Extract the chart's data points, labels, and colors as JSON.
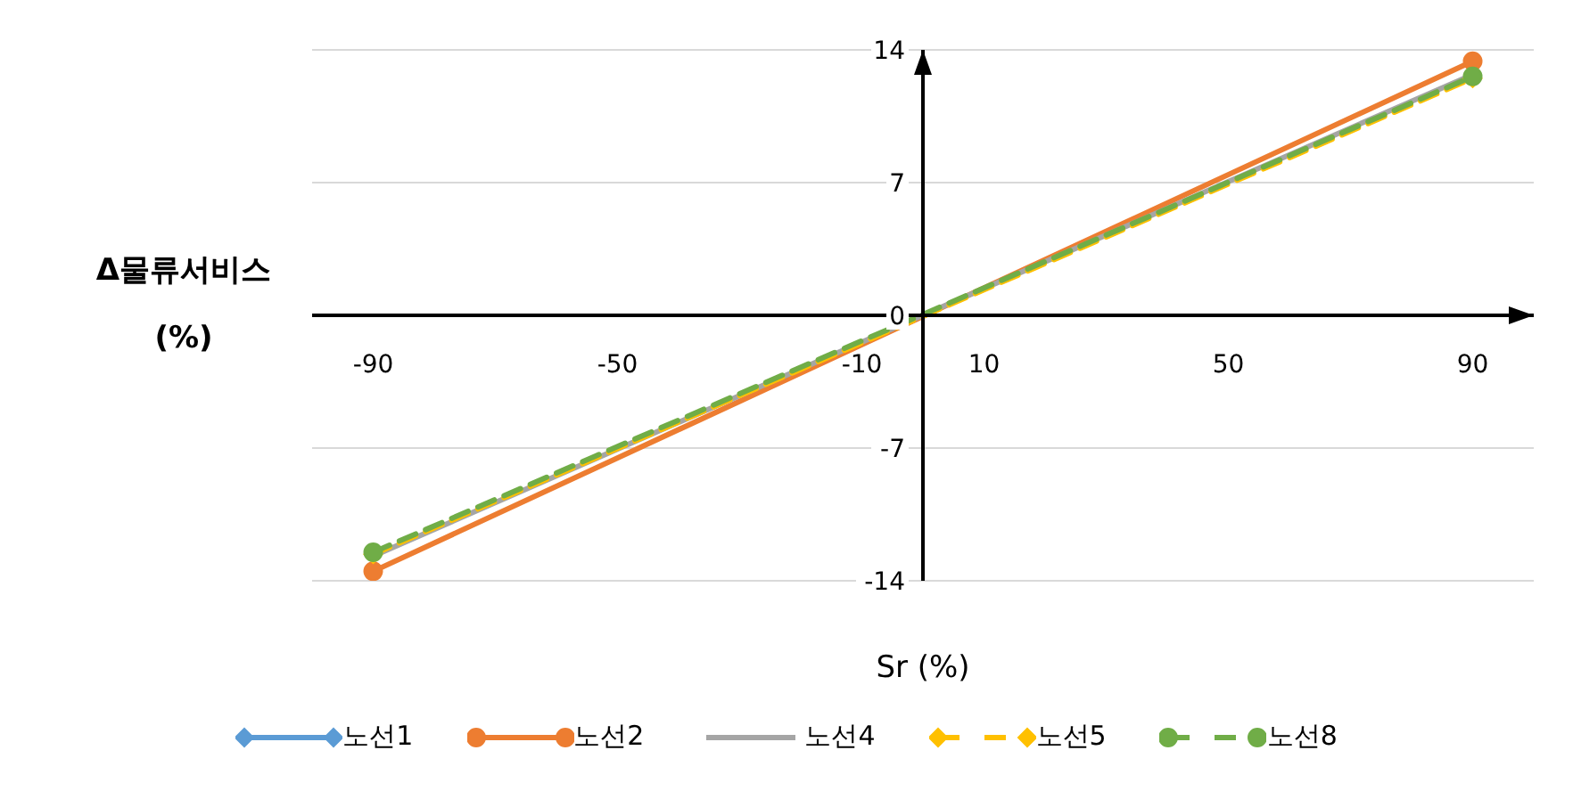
{
  "chart_data": {
    "type": "line",
    "xlabel": "Sr (%)",
    "ylabel": "Δ물류서비스 (%)",
    "x": [
      -90,
      90
    ],
    "xlim": [
      -100,
      100
    ],
    "xticks": [
      -90,
      -50,
      -10,
      10,
      50,
      90
    ],
    "ylim": [
      -14,
      14
    ],
    "yticks": [
      -14,
      -7,
      0,
      7,
      14
    ],
    "grid": "y",
    "legend": "bottom",
    "series": [
      {
        "name": "노선1",
        "color": "#5b9bd5",
        "values": [
          null,
          null
        ],
        "marker": "diamond",
        "line_style": "solid"
      },
      {
        "name": "노선2",
        "color": "#ed7d31",
        "values": [
          -13.5,
          13.4
        ],
        "marker": "circle",
        "line_style": "solid"
      },
      {
        "name": "노선4",
        "color": "#a5a5a5",
        "values": [
          -12.7,
          12.7
        ],
        "marker": "none",
        "line_style": "solid"
      },
      {
        "name": "노선5",
        "color": "#ffc000",
        "values": [
          -12.6,
          12.5
        ],
        "marker": "diamond",
        "line_style": "dashed"
      },
      {
        "name": "노선8",
        "color": "#70ad47",
        "values": [
          -12.5,
          12.6
        ],
        "marker": "circle",
        "line_style": "dashed"
      }
    ]
  }
}
